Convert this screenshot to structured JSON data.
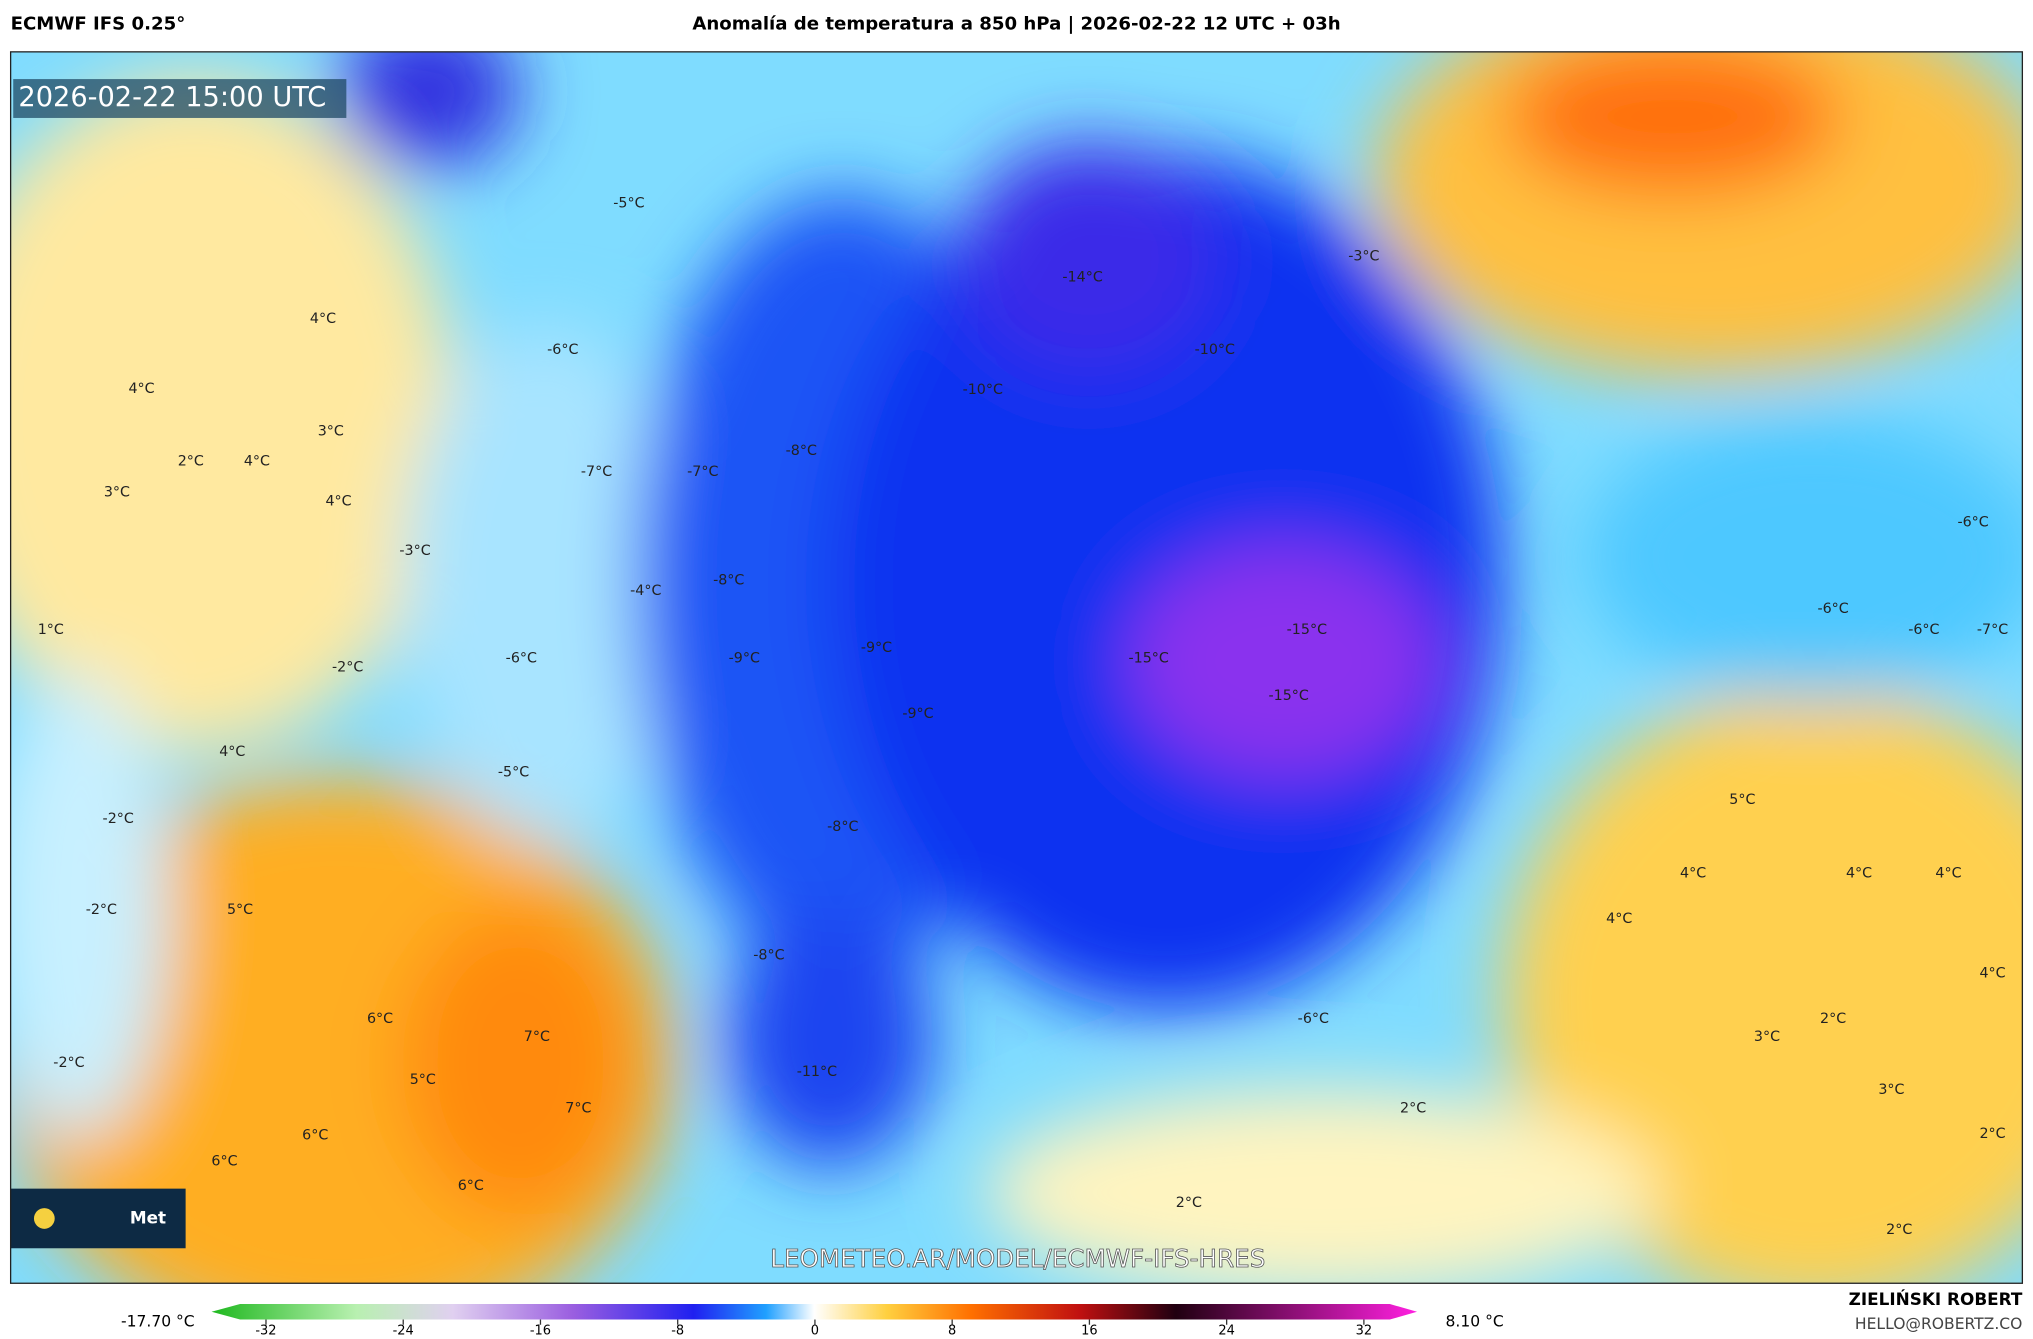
{
  "header": {
    "model": "ECMWF IFS 0.25°",
    "title": "Anomalía de temperatura a 850 hPa | 2026-02-22 12 UTC + 03h"
  },
  "map": {
    "timestamp": "2026-02-22 15:00 UTC",
    "watermark": "LEOMETEO.AR/MODEL/ECMWF-IFS-HRES",
    "logo": "Met",
    "labels": [
      "-5°C",
      "-14°C",
      "-3°C",
      "-10°C",
      "-6°C",
      "4°C",
      "4°C",
      "-10°C",
      "3°C",
      "2°C",
      "4°C",
      "-8°C",
      "-7°C",
      "-7°C",
      "3°C",
      "4°C",
      "-3°C",
      "-8°C",
      "-4°C",
      "1°C",
      "-6°C",
      "-9°C",
      "-9°C",
      "-15°C",
      "-15°C",
      "-15°C",
      "-2°C",
      "-9°C",
      "-6°C",
      "-6°C",
      "-6°C",
      "-7°C",
      "4°C",
      "-5°C",
      "5°C",
      "-2°C",
      "-8°C",
      "4°C",
      "4°C",
      "4°C",
      "-2°C",
      "5°C",
      "4°C",
      "-8°C",
      "4°C",
      "6°C",
      "-6°C",
      "7°C",
      "3°C",
      "2°C",
      "-2°C",
      "-11°C",
      "5°C",
      "3°C",
      "7°C",
      "2°C",
      "6°C",
      "2°C",
      "6°C",
      "6°C",
      "2°C",
      "2°C"
    ]
  },
  "colorbar": {
    "min_label": "-17.70 °C",
    "max_label": "8.10 °C",
    "ticks": [
      -32,
      -24,
      -16,
      -8,
      0,
      8,
      16,
      24,
      32
    ]
  },
  "credit": {
    "name": "ZIELIŃSKI ROBERT",
    "email": "HELLO@ROBERTZ.CO"
  }
}
